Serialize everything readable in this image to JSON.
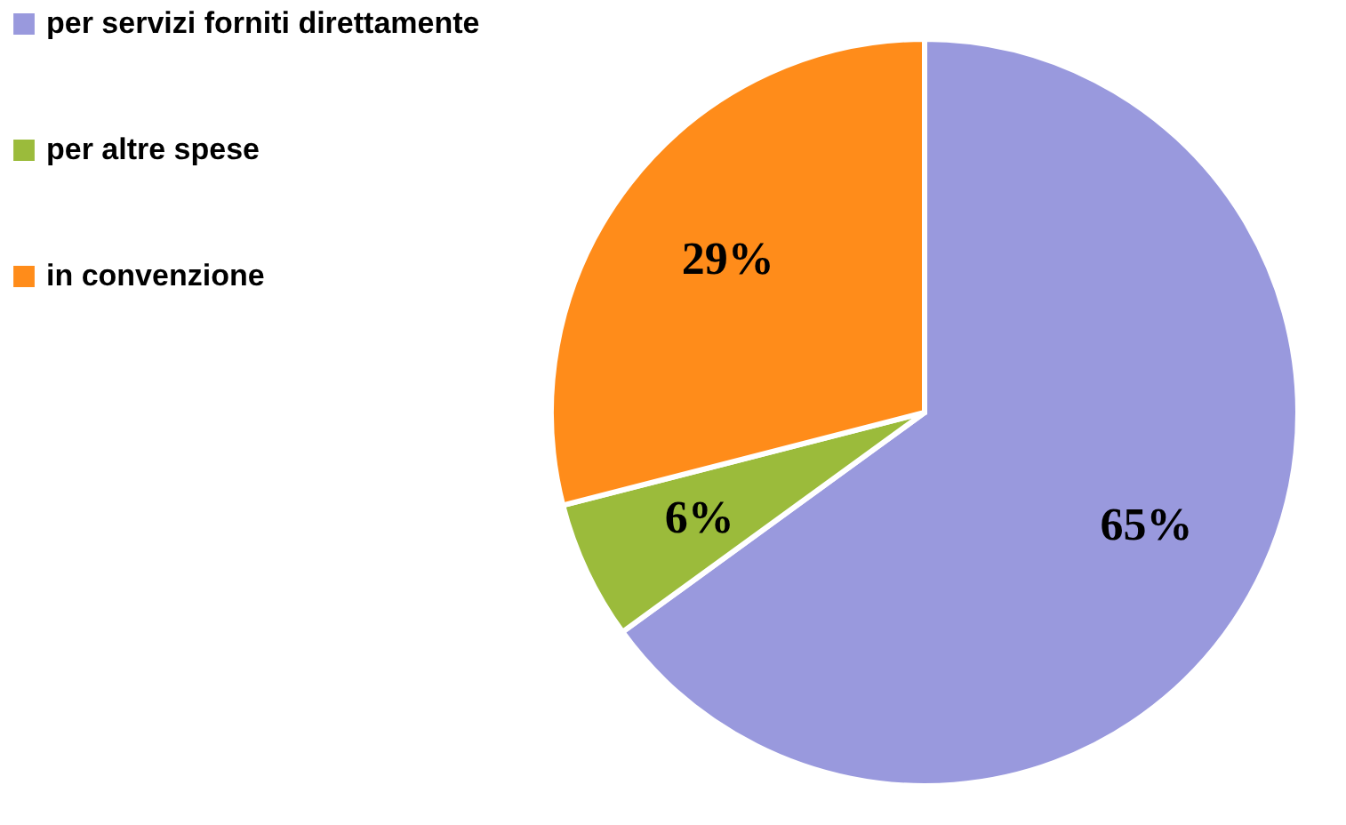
{
  "chart_data": {
    "type": "pie",
    "categories": [
      "per servizi forniti direttamente",
      "per altre spese",
      "in convenzione"
    ],
    "values": [
      65,
      6,
      29
    ],
    "colors": [
      "#9999dd",
      "#9bbb3b",
      "#ff8c1a"
    ],
    "value_labels": [
      "65%",
      "6%",
      "29%"
    ],
    "legend": "left"
  }
}
